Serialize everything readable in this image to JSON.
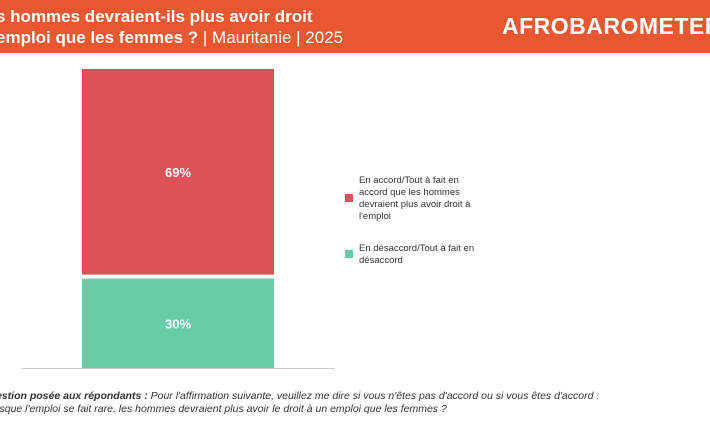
{
  "header": {
    "title_bold_1": "s hommes devraient-ils plus avoir droit",
    "title_bold_2": "emploi que les femmes ?",
    "title_light": " | Mauritanie | 2025",
    "logo": "AFROBAROMETER"
  },
  "chart_data": {
    "type": "bar",
    "stacked": true,
    "categories": [
      ""
    ],
    "ylim": [
      0,
      100
    ],
    "grid": false,
    "legend_placement": "right",
    "series": [
      {
        "name": "En accord/Tout à fait en accord que les hommes devraient plus avoir droit à l'emploi",
        "values": [
          69
        ],
        "label": "69%",
        "color": "#DD5257"
      },
      {
        "name": "En désaccord/Tout à fait en désaccord",
        "values": [
          30
        ],
        "label": "30%",
        "color": "#66CDA5"
      }
    ]
  },
  "footer": {
    "question_label": "estion posée aux répondants :",
    "question_line1": " Pour l'affirmation suivante, veuillez me dire si vous n'êtes pas d'accord ou si vous êtes d'accord :",
    "question_line2": "rsque l'emploi se fait rare, les hommes devraient plus avoir le droit à un emploi que les femmes ?"
  }
}
